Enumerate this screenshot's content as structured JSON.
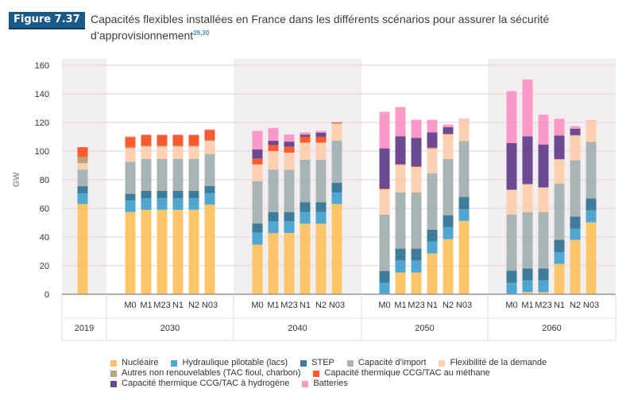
{
  "figure": {
    "label": "Figure 7.37",
    "title": "Capacités flexibles installées en France dans les différents scénarios pour assurer la sécurité d’approvisionnement",
    "footnote": "29,30"
  },
  "chart_data": {
    "type": "bar",
    "stacked": true,
    "title": "Capacités flexibles installées en France dans les différents scénarios pour assurer la sécurité d’approvisionnement",
    "xlabel": "",
    "ylabel": "GW",
    "ylim": [
      0,
      160
    ],
    "yticks": [
      0,
      20,
      40,
      60,
      80,
      100,
      120,
      140,
      160
    ],
    "grid": true,
    "legend_position": "bottom",
    "groups": [
      {
        "year": "2019",
        "scenarios": [
          ""
        ]
      },
      {
        "year": "2030",
        "scenarios": [
          "M0",
          "M1",
          "M23",
          "N1",
          "N2",
          "N03"
        ]
      },
      {
        "year": "2040",
        "scenarios": [
          "M0",
          "M1",
          "M23",
          "N1",
          "N2",
          "N03"
        ]
      },
      {
        "year": "2050",
        "scenarios": [
          "M0",
          "M1",
          "M23",
          "N1",
          "N2",
          "N03"
        ]
      },
      {
        "year": "2060",
        "scenarios": [
          "M0",
          "M1",
          "M23",
          "N1",
          "N2",
          "N03"
        ]
      }
    ],
    "series": [
      {
        "name": "Nucléaire",
        "color": "#fdc46a",
        "values": [
          63,
          57.5,
          59,
          59,
          59,
          59,
          62.6,
          34.6,
          42.8,
          42.8,
          49.3,
          49.3,
          63,
          0,
          15.2,
          15.2,
          28.5,
          38.5,
          51.3,
          0,
          1.5,
          1.5,
          21.3,
          38,
          50.2
        ]
      },
      {
        "name": "Hydraulique pilotable (lacs)",
        "color": "#4ea6d1",
        "values": [
          7.5,
          8,
          8.2,
          8.2,
          8.2,
          8.2,
          8,
          8.4,
          8.3,
          8.3,
          8.1,
          8.1,
          8.1,
          8,
          8.3,
          8.3,
          8.4,
          8.4,
          8.1,
          8,
          8.1,
          8.1,
          8.1,
          7.7,
          8.3
        ]
      },
      {
        "name": "STEP",
        "color": "#3d7d9a",
        "values": [
          5,
          4.7,
          5,
          5,
          5,
          5,
          5,
          6.4,
          6.3,
          6.3,
          6.9,
          6.9,
          6.7,
          8.3,
          8.4,
          8.4,
          8.1,
          8.3,
          8.6,
          8.5,
          8.4,
          8.4,
          8.6,
          8.6,
          8.4
        ]
      },
      {
        "name": "Capacité d’import",
        "color": "#a9b4b4",
        "values": [
          11.5,
          22.4,
          22.4,
          22.4,
          22.4,
          22.4,
          22.4,
          29.6,
          29.6,
          29.6,
          29.6,
          29.6,
          29.6,
          39.4,
          39.2,
          39.2,
          39.4,
          39.2,
          39,
          39.2,
          39.4,
          39.4,
          39.2,
          39.4,
          39.6
        ]
      },
      {
        "name": "Flexibilité de la demande",
        "color": "#fecfb0",
        "values": [
          4.6,
          9.4,
          8.5,
          8.5,
          8.5,
          8.5,
          9,
          11.7,
          13,
          11.9,
          12,
          12,
          11.9,
          17.6,
          19.3,
          17.8,
          17.5,
          17.3,
          15.2,
          17.3,
          19.5,
          17.2,
          17.1,
          17.2,
          14.6
        ]
      },
      {
        "name": "Autres non renouvelables (TAC fioul, charbon)",
        "color": "#b9a47a",
        "values": [
          4.3,
          0.8,
          0.8,
          0.8,
          0.8,
          0.8,
          0.8,
          0,
          0,
          0,
          0,
          0,
          0,
          0,
          0,
          0,
          0,
          0,
          0,
          0,
          0,
          0,
          0,
          0,
          0
        ]
      },
      {
        "name": "Capacité thermique CCG/TAC au méthane",
        "color": "#fb5b2e",
        "values": [
          6.8,
          7,
          7.3,
          7.3,
          7.3,
          7.3,
          7,
          4.1,
          4.2,
          4.1,
          4.1,
          4.1,
          0.7,
          0.5,
          0.5,
          0.5,
          0.5,
          0.5,
          0,
          0,
          0,
          0,
          0,
          0.3,
          0
        ]
      },
      {
        "name": "Capacité thermique CCG/TAC à hydrogène",
        "color": "#6b4a92",
        "values": [
          0,
          0,
          0,
          0,
          0,
          0,
          0,
          6.3,
          3,
          3.6,
          1.5,
          2.8,
          0,
          28.1,
          19.5,
          19.9,
          10.7,
          4.5,
          0,
          32.6,
          33.5,
          30,
          16.6,
          4.5,
          0
        ]
      },
      {
        "name": "Batteries",
        "color": "#fc99c9",
        "values": [
          0,
          0.5,
          0.4,
          0.4,
          0.4,
          0.4,
          0.4,
          13,
          9,
          5,
          1.5,
          1.3,
          0.3,
          25.5,
          20.3,
          12.6,
          8.8,
          1.8,
          0.4,
          36.3,
          39.6,
          20.8,
          11.7,
          1.7,
          0.4
        ]
      }
    ]
  }
}
